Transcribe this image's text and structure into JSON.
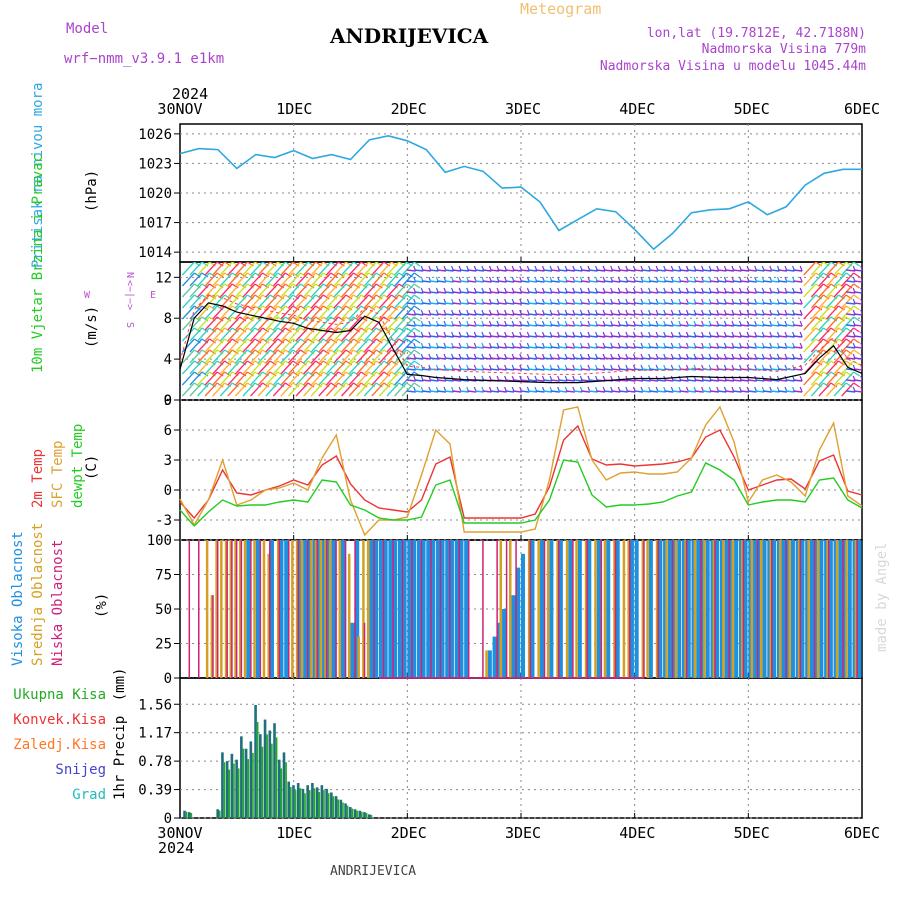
{
  "header": {
    "model_label": "Model",
    "model_name": "wrf−nmm_v3.9.1  e1km",
    "product": "Meteogram",
    "station": "ANDRIJEVICA",
    "lonlat": "lon,lat (19.7812E, 42.7188N)",
    "elevation": "Nadmorska Visina 779m",
    "model_elevation": "Nadmorska Visina u modelu 1045.44m",
    "year": "2024",
    "footer_station": "ANDRIJEVICA",
    "credit": "made by Angel"
  },
  "time_axis": {
    "labels": [
      "30NOV",
      "1DEC",
      "2DEC",
      "3DEC",
      "4DEC",
      "5DEC",
      "6DEC"
    ],
    "year": "2024"
  },
  "colors": {
    "pressure": "#2ea8e0",
    "temp2m": "#ee3333",
    "sfc_temp": "#e0a030",
    "dewpoint": "#22cc22",
    "high_cloud": "#1e90e0",
    "mid_cloud": "#d4a020",
    "low_cloud": "#cc2277",
    "total_precip": "#22aa22",
    "conv_precip": "#ee3333",
    "frozen_precip": "#ff7722",
    "snow": "#4444cc",
    "graupel": "#22bbbb",
    "precip_bar_dark": "#1f6f7f",
    "wind_strong_red": "#ff2a6a",
    "wind_purple": "#9933cc"
  },
  "chart_data": [
    {
      "type": "line",
      "panel": "pressure",
      "ylabel": "Pritisak na nivou mora",
      "unit": "(hPa)",
      "ylim": [
        1013,
        1027
      ],
      "yticks": [
        1014,
        1017,
        1020,
        1023,
        1026
      ],
      "x_hours": [
        0,
        4,
        8,
        12,
        16,
        20,
        24,
        28,
        32,
        36,
        40,
        44,
        48,
        52,
        56,
        60,
        64,
        68,
        72,
        76,
        80,
        84,
        88,
        92,
        96,
        100,
        104,
        108,
        112,
        116,
        120,
        124,
        128,
        132,
        136,
        140,
        144
      ],
      "values": [
        1024.0,
        1024.5,
        1024.4,
        1022.5,
        1023.9,
        1023.6,
        1024.3,
        1023.5,
        1023.9,
        1023.4,
        1025.4,
        1025.8,
        1025.3,
        1024.4,
        1022.1,
        1022.7,
        1022.2,
        1020.5,
        1020.6,
        1019.1,
        1016.2,
        1017.3,
        1018.4,
        1018.1,
        1016.3,
        1014.3,
        1015.9,
        1018.0,
        1018.3,
        1018.4,
        1019.1,
        1017.8,
        1018.6,
        1020.8,
        1022.0,
        1022.4,
        1022.4
      ],
      "grid": true
    },
    {
      "type": "line",
      "panel": "wind",
      "ylabel": "10m Vjetar Brzina i Pravac",
      "unit": "(m/s)",
      "compass": "N",
      "compass_w": "W",
      "compass_e": "E",
      "compass_row": "<−|−>",
      "compass_left": "S",
      "ylim": [
        0,
        13.5
      ],
      "yticks": [
        0,
        4,
        8,
        12
      ],
      "x_hours": [
        0,
        3,
        6,
        9,
        12,
        15,
        18,
        21,
        24,
        27,
        30,
        33,
        36,
        39,
        42,
        45,
        48,
        51,
        54,
        57,
        60,
        66,
        72,
        78,
        84,
        90,
        96,
        102,
        108,
        114,
        120,
        126,
        132,
        135,
        138,
        141,
        144
      ],
      "values": [
        3.0,
        8.0,
        9.5,
        9.2,
        8.6,
        8.3,
        8.0,
        7.7,
        7.5,
        7.0,
        6.8,
        6.6,
        6.8,
        8.2,
        7.6,
        5.0,
        2.5,
        2.4,
        2.2,
        2.1,
        2.0,
        1.9,
        1.8,
        1.7,
        1.7,
        1.9,
        2.1,
        2.1,
        2.3,
        2.2,
        2.2,
        2.0,
        2.6,
        4.1,
        5.3,
        3.2,
        2.6
      ],
      "grid": true
    },
    {
      "type": "line",
      "panel": "temperature",
      "ylabel": "2m Temp",
      "ylabel2": "SFC Temp",
      "ylabel3": "dewpt Temp",
      "unit": "(C)",
      "ylim": [
        -5,
        9
      ],
      "yticks": [
        -3,
        0,
        3,
        6,
        9
      ],
      "x_hours": [
        0,
        3,
        6,
        9,
        12,
        15,
        18,
        21,
        24,
        27,
        30,
        33,
        36,
        39,
        42,
        45,
        48,
        51,
        54,
        57,
        60,
        63,
        66,
        69,
        72,
        75,
        78,
        81,
        84,
        87,
        90,
        93,
        96,
        99,
        102,
        105,
        108,
        111,
        114,
        117,
        120,
        123,
        126,
        129,
        132,
        135,
        138,
        141,
        144
      ],
      "series": [
        {
          "name": "2m Temp",
          "values": [
            -1.2,
            -2.8,
            -1.0,
            2.0,
            -0.3,
            -0.5,
            0.0,
            0.4,
            1.0,
            0.5,
            2.5,
            3.4,
            0.6,
            -1.0,
            -1.8,
            -2.0,
            -2.2,
            -1.0,
            2.6,
            3.3,
            -2.8,
            -2.8,
            -2.8,
            -2.8,
            -2.8,
            -2.4,
            0.3,
            5.0,
            6.4,
            3.1,
            2.5,
            2.6,
            2.4,
            2.5,
            2.6,
            2.8,
            3.2,
            5.3,
            6.0,
            3.3,
            0.0,
            0.5,
            1.0,
            1.1,
            0.1,
            2.9,
            3.5,
            -0.1,
            -0.5
          ]
        },
        {
          "name": "SFC Temp",
          "values": [
            -0.9,
            -3.5,
            -1.0,
            3.0,
            -1.5,
            -1.0,
            0.0,
            0.2,
            0.7,
            0.0,
            3.2,
            5.5,
            -1.0,
            -4.5,
            -3.0,
            -3.0,
            -2.7,
            1.5,
            6.0,
            4.6,
            -4.2,
            -4.2,
            -4.2,
            -4.2,
            -4.2,
            -3.9,
            1.0,
            8.0,
            8.3,
            3.0,
            1.0,
            1.7,
            1.8,
            1.6,
            1.6,
            1.8,
            3.2,
            6.5,
            8.3,
            4.8,
            -1.2,
            1.0,
            1.5,
            0.8,
            -0.6,
            4.0,
            6.7,
            -0.6,
            -1.6
          ]
        },
        {
          "name": "dewpt Temp",
          "values": [
            -2.0,
            -3.6,
            -2.2,
            -1.0,
            -1.6,
            -1.5,
            -1.5,
            -1.2,
            -1.0,
            -1.2,
            1.0,
            0.8,
            -1.5,
            -2.0,
            -2.8,
            -3.0,
            -3.0,
            -2.7,
            0.5,
            1.0,
            -3.3,
            -3.3,
            -3.3,
            -3.3,
            -3.3,
            -3.0,
            -1.0,
            3.0,
            2.8,
            -0.5,
            -1.7,
            -1.5,
            -1.5,
            -1.4,
            -1.2,
            -0.6,
            -0.2,
            2.7,
            2.0,
            1.0,
            -1.5,
            -1.2,
            -1.0,
            -1.0,
            -1.2,
            1.0,
            1.2,
            -1.0,
            -1.8
          ]
        }
      ],
      "grid": true
    },
    {
      "type": "bar",
      "panel": "cloud",
      "ylabel": "Visoka Oblacnost",
      "ylabel2": "Srednja Oblacnost",
      "ylabel3": "Niska Oblacnost",
      "unit": "(%)",
      "ylim": [
        0,
        100
      ],
      "yticks": [
        0,
        25,
        50,
        75,
        100
      ],
      "series": [
        {
          "name": "Visoka Oblacnost",
          "hours": [
            14,
            16,
            19,
            21,
            22,
            25,
            26,
            27,
            28,
            29,
            30,
            31,
            32,
            34,
            36,
            37,
            40,
            41,
            42,
            43,
            44,
            45,
            46,
            47,
            48,
            49,
            50,
            51,
            52,
            53,
            54,
            55,
            56,
            57,
            58,
            59,
            60,
            65,
            66,
            67,
            68,
            70,
            71,
            72,
            74,
            76,
            78,
            80,
            82,
            84,
            86,
            88,
            90,
            92,
            95,
            96,
            99,
            101,
            102,
            103,
            104,
            105,
            106,
            107,
            108,
            109,
            110,
            111,
            112,
            113,
            114,
            115,
            116,
            117,
            118,
            119,
            120,
            121,
            122,
            123,
            124,
            125,
            126,
            127,
            128,
            129,
            130,
            131,
            132,
            133,
            134,
            135,
            136,
            137,
            138,
            139,
            140,
            141,
            142,
            143
          ],
          "values": [
            100,
            100,
            100,
            100,
            100,
            100,
            100,
            100,
            100,
            100,
            100,
            100,
            100,
            100,
            40,
            100,
            100,
            100,
            100,
            100,
            100,
            100,
            100,
            100,
            100,
            100,
            100,
            100,
            100,
            100,
            100,
            100,
            100,
            100,
            100,
            100,
            100,
            20,
            30,
            40,
            50,
            60,
            80,
            90,
            100,
            100,
            100,
            100,
            100,
            100,
            100,
            100,
            100,
            100,
            100,
            100,
            100,
            100,
            100,
            100,
            100,
            100,
            100,
            100,
            100,
            100,
            100,
            100,
            100,
            100,
            100,
            100,
            100,
            100,
            100,
            100,
            100,
            100,
            100,
            100,
            100,
            100,
            100,
            100,
            100,
            100,
            100,
            100,
            100,
            100,
            100,
            100,
            100,
            100,
            100,
            100,
            100,
            100,
            100,
            100
          ]
        },
        {
          "name": "Srednja Oblacnost",
          "hours": [
            5,
            6,
            7,
            8,
            9,
            10,
            11,
            12,
            13,
            15,
            17,
            18,
            20,
            23,
            24,
            25,
            27,
            28,
            29,
            30,
            31,
            33,
            35,
            37,
            38,
            39,
            64,
            67,
            69,
            73,
            75,
            77,
            79,
            81,
            83,
            85,
            87,
            89,
            91,
            93,
            94,
            97,
            98,
            100,
            102,
            104,
            106,
            108,
            110,
            112,
            114,
            116,
            118,
            120,
            122,
            124,
            126,
            128,
            130,
            132,
            134,
            136,
            138,
            140,
            142
          ],
          "values": [
            100,
            60,
            100,
            100,
            100,
            100,
            100,
            100,
            100,
            100,
            100,
            90,
            100,
            100,
            100,
            100,
            100,
            100,
            100,
            100,
            100,
            100,
            90,
            30,
            100,
            100,
            20,
            100,
            100,
            100,
            100,
            100,
            100,
            100,
            100,
            100,
            100,
            100,
            100,
            100,
            100,
            100,
            100,
            100,
            100,
            100,
            100,
            100,
            100,
            100,
            100,
            100,
            100,
            100,
            100,
            100,
            100,
            100,
            100,
            100,
            100,
            100,
            100,
            100,
            100
          ]
        },
        {
          "name": "Niska Oblacnost",
          "hours": [
            1,
            3,
            6,
            7,
            9,
            10,
            11,
            12,
            14,
            16,
            18,
            20,
            22,
            24,
            26,
            28,
            30,
            32,
            34,
            36,
            38,
            40,
            42,
            44,
            46,
            48,
            50,
            52,
            54,
            56,
            58,
            60,
            63,
            66,
            68,
            70,
            73,
            76,
            79,
            82,
            85,
            88,
            91,
            94,
            97,
            100,
            103,
            106,
            109,
            112,
            115,
            118,
            121,
            124,
            127,
            130,
            133,
            136,
            139,
            142
          ],
          "values": [
            100,
            100,
            60,
            100,
            100,
            100,
            100,
            100,
            100,
            100,
            100,
            100,
            100,
            100,
            100,
            100,
            100,
            100,
            100,
            100,
            40,
            100,
            100,
            100,
            100,
            100,
            100,
            100,
            100,
            100,
            100,
            100,
            100,
            100,
            100,
            100,
            100,
            100,
            100,
            100,
            100,
            100,
            100,
            100,
            100,
            100,
            100,
            100,
            100,
            100,
            100,
            100,
            100,
            100,
            100,
            100,
            100,
            100,
            100,
            100
          ]
        }
      ],
      "grid": true
    },
    {
      "type": "bar",
      "panel": "precip",
      "ylabel": "1hr Precip",
      "unit": "(mm)",
      "legend": [
        "Ukupna Kisa",
        "Konvek.Kisa",
        "Zaledj.Kisa",
        "Snijeg",
        "Grad"
      ],
      "ylim": [
        0,
        1.92
      ],
      "yticks": [
        0,
        0.39,
        0.78,
        1.17,
        1.56
      ],
      "hours": [
        1,
        2,
        3,
        4,
        5,
        6,
        7,
        8,
        9,
        10,
        11,
        12,
        13,
        14,
        15,
        16,
        17,
        18,
        19,
        20,
        21,
        22,
        23,
        24,
        25,
        26,
        27,
        28,
        29,
        30,
        31,
        32,
        33,
        34,
        35,
        36,
        37,
        38,
        39,
        40
      ],
      "values": [
        0.1,
        0.08,
        0.0,
        0.0,
        0.0,
        0.0,
        0.0,
        0.12,
        0.9,
        0.78,
        0.88,
        0.8,
        1.12,
        0.95,
        1.05,
        1.55,
        1.15,
        1.35,
        1.2,
        1.3,
        0.8,
        0.9,
        0.5,
        0.45,
        0.48,
        0.4,
        0.45,
        0.48,
        0.42,
        0.45,
        0.4,
        0.35,
        0.3,
        0.25,
        0.2,
        0.15,
        0.12,
        0.1,
        0.08,
        0.05
      ],
      "grid": true
    }
  ]
}
